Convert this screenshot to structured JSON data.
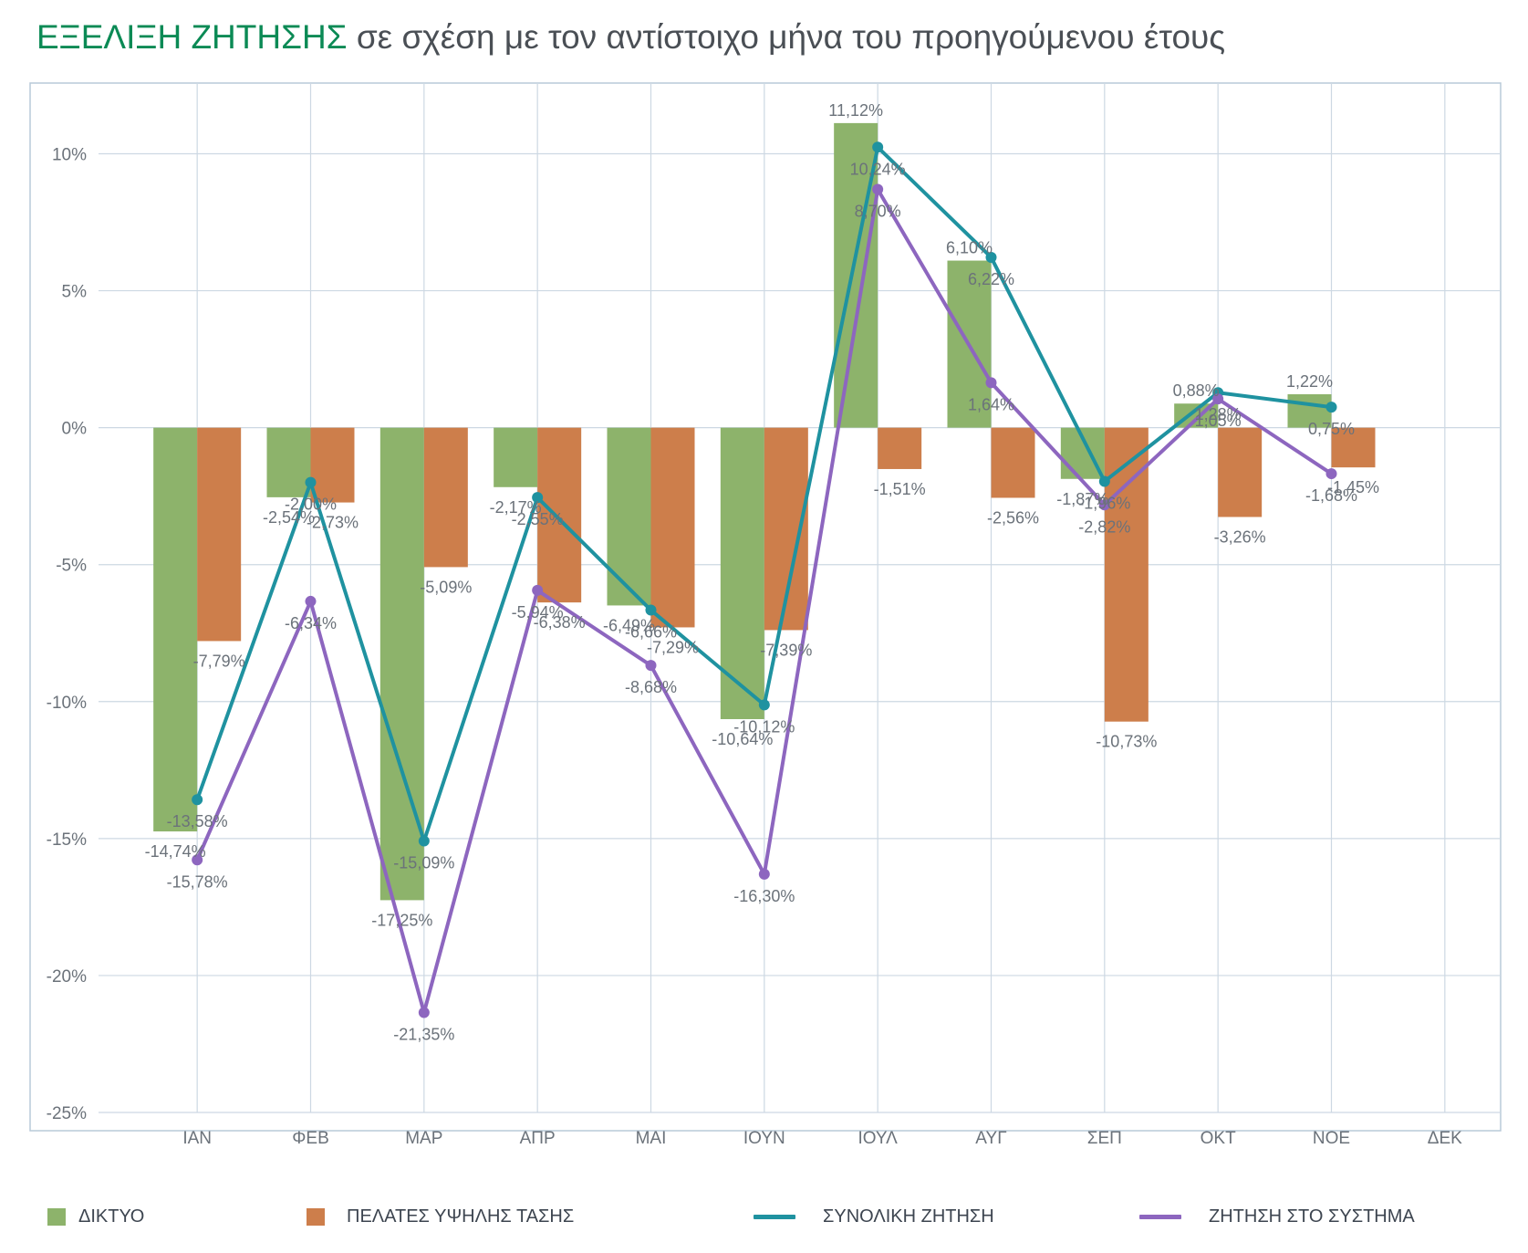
{
  "title": {
    "bold": "ΕΞΕΛΙΞΗ ΖΗΤΗΣΗΣ",
    "rest": "σε σχέση με τον αντίστοιχο μήνα του προηγούμενου έτους"
  },
  "colors": {
    "diktyo": "#8db36b",
    "pelates": "#cd7e4b",
    "synoliki": "#1f92a0",
    "systima": "#8d66bf",
    "grid": "#cdd8e3",
    "frame": "#b9cad9",
    "text": "#6b727a",
    "title_bold": "#0b8a55"
  },
  "chart_data": {
    "type": "bar",
    "categories": [
      "ΙΑΝ",
      "ΦΕΒ",
      "ΜΑΡ",
      "ΑΠΡ",
      "ΜΑΙ",
      "ΙΟΥΝ",
      "ΙΟΥΛ",
      "ΑΥΓ",
      "ΣΕΠ",
      "ΟΚΤ",
      "ΝΟΕ",
      "ΔΕΚ"
    ],
    "ylim": [
      -25,
      12
    ],
    "yticks": [
      10,
      5,
      0,
      -5,
      -10,
      -15,
      -20,
      -25
    ],
    "ytick_labels": [
      "10%",
      "5%",
      "0%",
      "-5%",
      "-10%",
      "-15%",
      "-20%",
      "-25%"
    ],
    "grid": true,
    "legend_position": "bottom",
    "series": [
      {
        "name": "ΔΙΚΤΥΟ",
        "kind": "bar",
        "values": [
          -14.74,
          -2.54,
          -17.25,
          -2.17,
          -6.49,
          -10.64,
          11.12,
          6.1,
          -1.87,
          0.88,
          1.22,
          null
        ],
        "labels": [
          "-14,74%",
          "-2,54%",
          "-17,25%",
          "-2,17%",
          "-6,49%",
          "-10,64%",
          "11,12%",
          "6,10%",
          "-1,87%",
          "0,88%",
          "1,22%",
          null
        ]
      },
      {
        "name": "ΠΕΛΑΤΕΣ ΥΨΗΛΗΣ ΤΑΣΗΣ",
        "kind": "bar",
        "values": [
          -7.79,
          -2.73,
          -5.09,
          -6.38,
          -7.29,
          -7.39,
          -1.51,
          -2.56,
          -10.73,
          -3.26,
          -1.45,
          null
        ],
        "labels": [
          "-7,79%",
          "-2,73%",
          "-5,09%",
          "-6,38%",
          "-7,29%",
          "-7,39%",
          "-1,51%",
          "-2,56%",
          "-10,73%",
          "-3,26%",
          "-1,45%",
          null
        ]
      },
      {
        "name": "ΣΥΝΟΛΙΚΗ ΖΗΤΗΣΗ",
        "kind": "line",
        "values": [
          -13.58,
          -2.0,
          -15.09,
          -2.55,
          -6.66,
          -10.12,
          10.24,
          6.22,
          -1.96,
          1.28,
          0.75,
          null
        ],
        "labels": [
          "-13,58%",
          "-2,00%",
          "-15,09%",
          "-2,55%",
          "-6,66%",
          "-10,12%",
          "10,24%",
          "6,22%",
          "-1,96%",
          "1,28%",
          "0,75%",
          null
        ]
      },
      {
        "name": "ΖΗΤΗΣΗ ΣΤΟ ΣΥΣΤΗΜΑ",
        "kind": "line",
        "values": [
          -15.78,
          -6.34,
          -21.35,
          -5.94,
          -8.68,
          -16.3,
          8.7,
          1.64,
          -2.82,
          1.05,
          -1.68,
          null
        ],
        "labels": [
          "-15,78%",
          "-6,34%",
          "-21,35%",
          "-5,94%",
          "-8,68%",
          "-16,30%",
          "8,70%",
          "1,64%",
          "-2,82%",
          "1,05%",
          "-1,68%",
          null
        ]
      }
    ]
  }
}
